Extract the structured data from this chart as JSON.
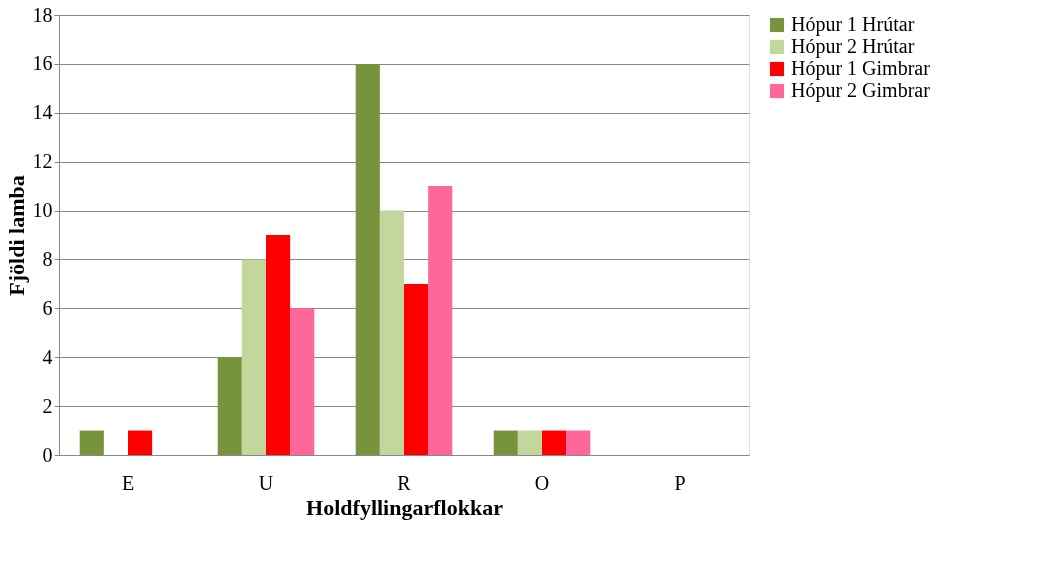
{
  "chart_data": {
    "type": "bar",
    "xlabel": "Holdfyllingarflokkar",
    "ylabel": "Fjöldi lamba",
    "categories": [
      "E",
      "U",
      "R",
      "O",
      "P"
    ],
    "series": [
      {
        "name": "Hópur 1 Hrútar",
        "color": "#77933c",
        "values": [
          1,
          4,
          16,
          1,
          0
        ]
      },
      {
        "name": "Hópur 2 Hrútar",
        "color": "#c3d69b",
        "values": [
          0,
          8,
          10,
          1,
          0
        ]
      },
      {
        "name": "Hópur 1 Gimbrar",
        "color": "#ff0000",
        "values": [
          1,
          9,
          7,
          1,
          0
        ]
      },
      {
        "name": "Hópur 2 Gimbrar",
        "color": "#ff6699",
        "values": [
          0,
          6,
          11,
          1,
          0
        ]
      }
    ],
    "ylim": [
      0,
      18
    ],
    "yticks": [
      0,
      2,
      4,
      6,
      8,
      10,
      12,
      14,
      16,
      18
    ],
    "grid": "y",
    "legend": "right"
  }
}
